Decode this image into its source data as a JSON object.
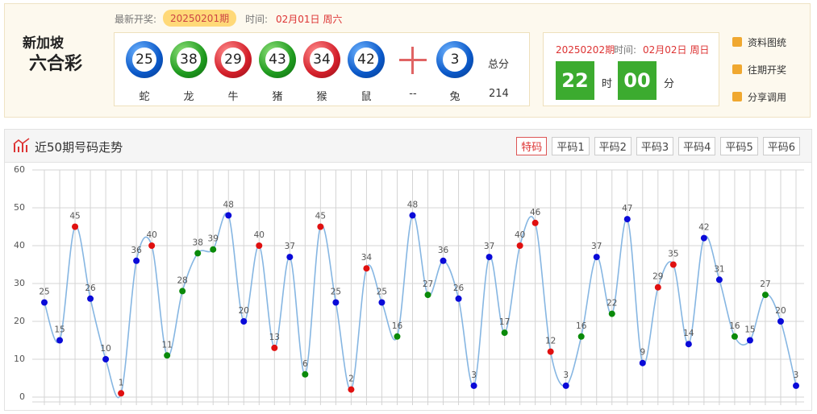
{
  "logo": {
    "line1": "新加坡",
    "line2": "六合彩"
  },
  "latest": {
    "label": "最新开奖:",
    "issue": "20250201期",
    "time_label": "时间:",
    "time": "02月01日 周六"
  },
  "balls": [
    {
      "number": 25,
      "zodiac": "蛇",
      "color": "blue"
    },
    {
      "number": 38,
      "zodiac": "龙",
      "color": "green"
    },
    {
      "number": 29,
      "zodiac": "牛",
      "color": "red"
    },
    {
      "number": 43,
      "zodiac": "猪",
      "color": "green"
    },
    {
      "number": 34,
      "zodiac": "猴",
      "color": "red"
    },
    {
      "number": 42,
      "zodiac": "鼠",
      "color": "blue"
    }
  ],
  "separator_label": "--",
  "special": {
    "number": 3,
    "zodiac": "兔",
    "color": "blue"
  },
  "total": {
    "label": "总分",
    "value": 214
  },
  "next": {
    "issue": "20250202期",
    "time_label": "时间:",
    "time": "02月02日 周日",
    "hour": "22",
    "hour_unit": "时",
    "minute": "00",
    "minute_unit": "分"
  },
  "links": [
    "资料图统",
    "往期开奖",
    "分享调用"
  ],
  "chart_data": {
    "type": "line",
    "title": "近50期号码走势",
    "tabs": [
      "特码",
      "平码1",
      "平码2",
      "平码3",
      "平码4",
      "平码5",
      "平码6"
    ],
    "active_tab": 0,
    "ylim": [
      0,
      60
    ],
    "yticks": [
      0,
      10,
      20,
      30,
      40,
      50,
      60
    ],
    "grid": true,
    "series": [
      {
        "color": "#86b6e2",
        "values": [
          25,
          15,
          45,
          26,
          10,
          1,
          36,
          40,
          11,
          28,
          38,
          39,
          48,
          20,
          40,
          13,
          37,
          6,
          45,
          25,
          2,
          34,
          25,
          16,
          48,
          27,
          36,
          26,
          3,
          37,
          17,
          40,
          46,
          12,
          3,
          16,
          37,
          22,
          47,
          9,
          29,
          35,
          14,
          42,
          31,
          16,
          15,
          27,
          20,
          3
        ],
        "point_colors": [
          "blue",
          "blue",
          "red",
          "blue",
          "blue",
          "red",
          "blue",
          "red",
          "green",
          "green",
          "green",
          "green",
          "blue",
          "blue",
          "red",
          "red",
          "blue",
          "green",
          "red",
          "blue",
          "red",
          "red",
          "blue",
          "green",
          "blue",
          "green",
          "blue",
          "blue",
          "blue",
          "blue",
          "green",
          "red",
          "red",
          "red",
          "blue",
          "green",
          "blue",
          "green",
          "blue",
          "blue",
          "red",
          "red",
          "blue",
          "blue",
          "blue",
          "green",
          "blue",
          "green",
          "blue",
          "blue"
        ]
      }
    ]
  }
}
